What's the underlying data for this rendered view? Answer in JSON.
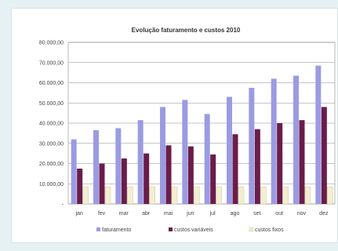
{
  "chart_data": {
    "type": "bar",
    "title": "Evolução faturamento e custos 2010",
    "categories": [
      "jan",
      "fev",
      "mar",
      "abr",
      "mai",
      "jun",
      "jul",
      "ago",
      "set",
      "out",
      "nov",
      "dez"
    ],
    "y_ticks": [
      "80.000,00",
      "70.000,00",
      "60.000,00",
      "50.000,00",
      "40.000,00",
      "30.000,00",
      "20.000,00",
      "10.000,00",
      "-"
    ],
    "ylim": [
      0,
      80000
    ],
    "grid": true,
    "legend_position": "bottom",
    "series": [
      {
        "name": "faturamento",
        "color": "#9b9be3",
        "values": [
          32000,
          36500,
          37500,
          41500,
          48000,
          51500,
          44500,
          53000,
          57500,
          62000,
          63500,
          68500
        ]
      },
      {
        "name": "custos variáveis",
        "color": "#6b1c4a",
        "values": [
          17500,
          20000,
          22500,
          25000,
          29000,
          28500,
          24500,
          34500,
          37000,
          40000,
          41500,
          48000
        ]
      },
      {
        "name": "custos fixos",
        "color": "#f2efcf",
        "values": [
          8500,
          8500,
          8500,
          8500,
          8500,
          8500,
          8500,
          8500,
          8500,
          8500,
          8500,
          8500
        ]
      }
    ]
  }
}
